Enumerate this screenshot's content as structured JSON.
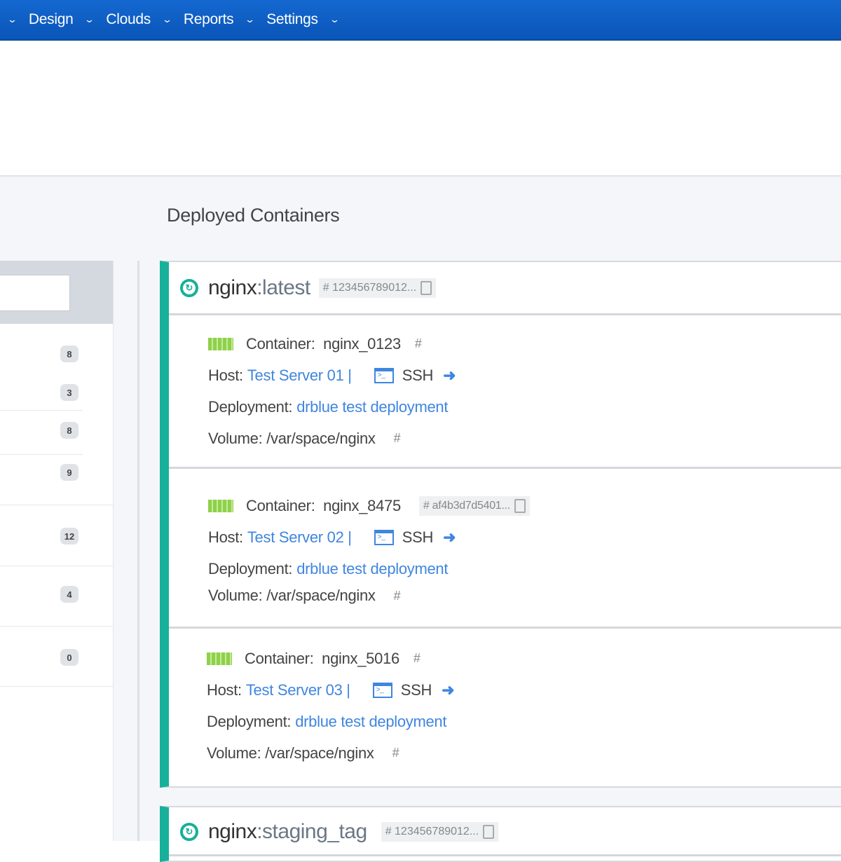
{
  "nav": {
    "items": [
      "Design",
      "Clouds",
      "Reports",
      "Settings"
    ]
  },
  "page": {
    "title": "Deployed Containers"
  },
  "sidebar": {
    "badges": [
      "8",
      "3",
      "8",
      "9",
      "12",
      "4",
      "0"
    ]
  },
  "cards": [
    {
      "image": "nginx",
      "tag": ":latest",
      "hash": "# 123456789012...",
      "containers": [
        {
          "label": "Container:",
          "name": "nginx_0123",
          "hash": "#",
          "host_label": "Host:",
          "host": "Test Server 01 |",
          "ssh": "SSH",
          "deployment_label": "Deployment:",
          "deployment": "drblue test deployment",
          "volume": "Volume: /var/space/nginx",
          "volume_hash": "#"
        },
        {
          "label": "Container:",
          "name": "nginx_8475",
          "hash": "# af4b3d7d5401...",
          "host_label": "Host:",
          "host": "Test Server 02 |",
          "ssh": "SSH",
          "deployment_label": "Deployment:",
          "deployment": "drblue test deployment",
          "volume": "Volume: /var/space/nginx",
          "volume_hash": "#"
        },
        {
          "label": "Container:",
          "name": "nginx_5016",
          "hash": "#",
          "host_label": "Host:",
          "host": "Test Server 03 |",
          "ssh": "SSH",
          "deployment_label": "Deployment:",
          "deployment": "drblue test deployment",
          "volume": "Volume: /var/space/nginx",
          "volume_hash": "#"
        }
      ]
    },
    {
      "image": "nginx",
      "tag": ":staging_tag",
      "hash": "# 123456789012..."
    }
  ],
  "colors": {
    "nav": "#0a5bc4",
    "accent": "#17b09b",
    "link": "#3f86e0"
  }
}
